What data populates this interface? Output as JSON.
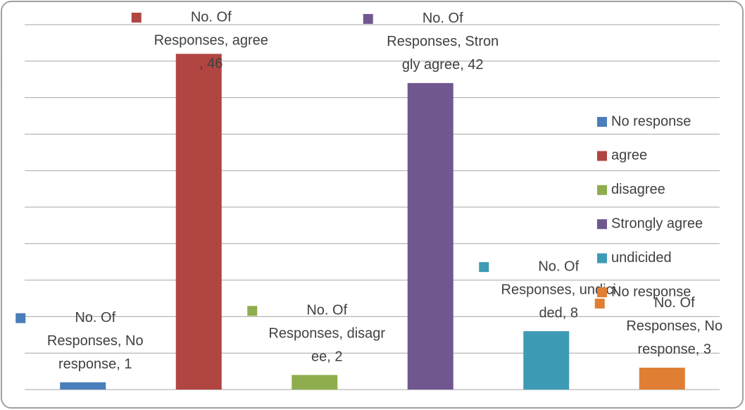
{
  "chart_data": {
    "type": "bar",
    "categories": [
      "No response",
      "agree",
      "disagree",
      "Strongly agree",
      "undicided",
      "No response"
    ],
    "values": [
      1,
      46,
      2,
      42,
      8,
      3
    ],
    "value_labels": [
      [
        "No. Of",
        "Responses, No",
        "response, 1"
      ],
      [
        "No. Of",
        "Responses, agree",
        ", 46"
      ],
      [
        "No. Of",
        "Responses, disagr",
        "ee, 2"
      ],
      [
        "No. Of",
        "Responses, Stron",
        "gly agree, 42"
      ],
      [
        "No. Of",
        "Responses, undici",
        "ded, 8"
      ],
      [
        "No. Of",
        "Responses, No",
        "response, 3"
      ]
    ],
    "colors": [
      "#4a7ebb",
      "#b04542",
      "#8fad4c",
      "#71578f",
      "#3e9bb5",
      "#e07f34"
    ],
    "ylim": [
      0,
      50
    ],
    "yticks": [
      0,
      5,
      10,
      15,
      20,
      25,
      30,
      35,
      40,
      45,
      50
    ],
    "grid": true,
    "legend": "right"
  }
}
